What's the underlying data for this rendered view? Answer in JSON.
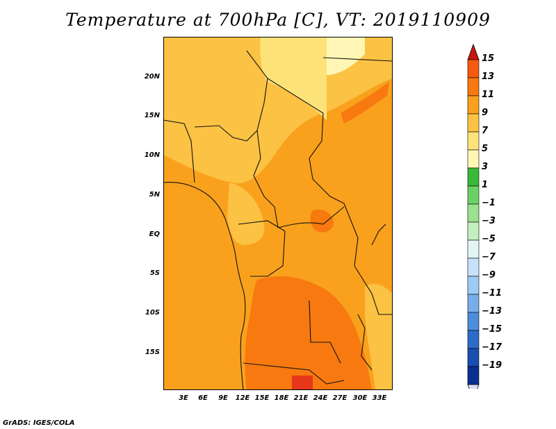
{
  "title": "Temperature at 700hPa [C], VT: 2019110909",
  "footer": "GrADS: IGES/COLA",
  "map": {
    "variable": "Temperature at 700hPa",
    "units": "C",
    "lat_labels": [
      "20N",
      "15N",
      "10N",
      "5N",
      "EQ",
      "5S",
      "10S",
      "15S"
    ],
    "lon_labels": [
      "3E",
      "6E",
      "9E",
      "12E",
      "15E",
      "18E",
      "21E",
      "24E",
      "27E",
      "30E",
      "33E"
    ]
  },
  "colorbar": {
    "labels": [
      "15",
      "13",
      "11",
      "9",
      "7",
      "5",
      "3",
      "1",
      "−1",
      "−3",
      "−5",
      "−7",
      "−9",
      "−11",
      "−13",
      "−15",
      "−17",
      "−19"
    ],
    "colors": [
      "#e8361a",
      "#f55a10",
      "#f7790f",
      "#f9a11d",
      "#fbc244",
      "#fde27a",
      "#fff6b5",
      "#39b83a",
      "#6ad264",
      "#9be18f",
      "#c4efbe",
      "#e2f5f3",
      "#c6e2fb",
      "#9fcaf5",
      "#77aee9",
      "#4d8edb",
      "#2c6cc7",
      "#1a4db0",
      "#0c2e8f",
      "#081a66"
    ],
    "top_arrow_color": "#c8150f",
    "bottom_arrow_color": "#dcdcf4"
  }
}
